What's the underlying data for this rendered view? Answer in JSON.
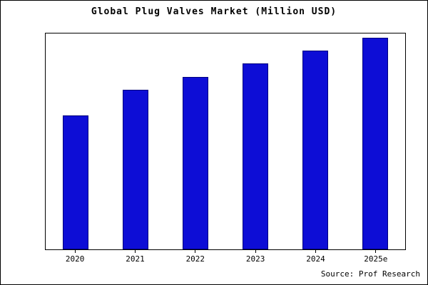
{
  "chart_data": {
    "type": "bar",
    "title": "Global Plug Valves Market (Million USD)",
    "categories": [
      "2020",
      "2021",
      "2022",
      "2023",
      "2024",
      "2025e"
    ],
    "values": [
      62,
      74,
      80,
      86,
      92,
      98
    ],
    "ylim": [
      0,
      100
    ],
    "xlabel": "",
    "ylabel": "",
    "grid": false,
    "legend_position": "none",
    "bar_color": "#0d0dd6",
    "bar_edge_color": "#00007e"
  },
  "source": {
    "label": "Source: Prof Research"
  }
}
